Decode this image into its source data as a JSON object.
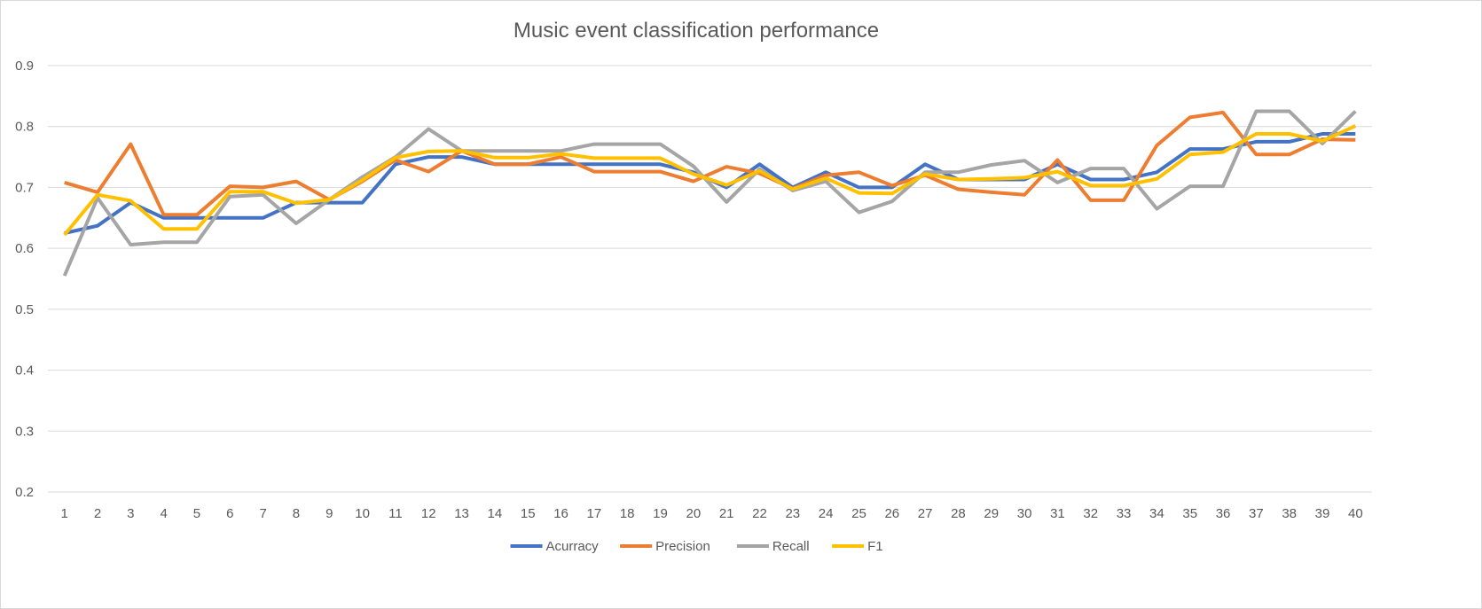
{
  "chart_data": {
    "type": "line",
    "title": "Music event classification performance",
    "xlabel": "",
    "ylabel": "",
    "x": [
      1,
      2,
      3,
      4,
      5,
      6,
      7,
      8,
      9,
      10,
      11,
      12,
      13,
      14,
      15,
      16,
      17,
      18,
      19,
      20,
      21,
      22,
      23,
      24,
      25,
      26,
      27,
      28,
      29,
      30,
      31,
      32,
      33,
      34,
      35,
      36,
      37,
      38,
      39,
      40
    ],
    "ylim": [
      0.2,
      0.9
    ],
    "yticks": [
      "0.2",
      "0.3",
      "0.4",
      "0.5",
      "0.6",
      "0.7",
      "0.8",
      "0.9"
    ],
    "grid": true,
    "legend_position": "bottom",
    "series": [
      {
        "name": "Acurracy",
        "color": "#4472C4",
        "values": [
          0.625,
          0.637,
          0.675,
          0.65,
          0.65,
          0.65,
          0.65,
          0.675,
          0.675,
          0.675,
          0.738,
          0.75,
          0.75,
          0.738,
          0.738,
          0.738,
          0.738,
          0.738,
          0.738,
          0.725,
          0.7,
          0.738,
          0.7,
          0.725,
          0.7,
          0.7,
          0.738,
          0.713,
          0.713,
          0.713,
          0.738,
          0.713,
          0.713,
          0.725,
          0.763,
          0.763,
          0.775,
          0.775,
          0.788,
          0.788
        ]
      },
      {
        "name": "Precision",
        "color": "#ED7D31",
        "values": [
          0.708,
          0.692,
          0.771,
          0.655,
          0.655,
          0.702,
          0.7,
          0.71,
          0.68,
          0.71,
          0.745,
          0.726,
          0.76,
          0.738,
          0.738,
          0.75,
          0.726,
          0.726,
          0.726,
          0.71,
          0.734,
          0.723,
          0.698,
          0.72,
          0.725,
          0.703,
          0.72,
          0.697,
          0.692,
          0.688,
          0.745,
          0.679,
          0.679,
          0.769,
          0.815,
          0.823,
          0.754,
          0.754,
          0.779,
          0.778
        ]
      },
      {
        "name": "Recall",
        "color": "#A5A5A5",
        "values": [
          0.555,
          0.683,
          0.606,
          0.61,
          0.61,
          0.685,
          0.688,
          0.641,
          0.68,
          0.717,
          0.75,
          0.796,
          0.76,
          0.76,
          0.76,
          0.76,
          0.771,
          0.771,
          0.771,
          0.735,
          0.676,
          0.73,
          0.695,
          0.71,
          0.659,
          0.677,
          0.725,
          0.725,
          0.737,
          0.744,
          0.708,
          0.731,
          0.731,
          0.665,
          0.702,
          0.702,
          0.825,
          0.825,
          0.772,
          0.825
        ]
      },
      {
        "name": "F1",
        "color": "#FFC000",
        "values": [
          0.622,
          0.688,
          0.678,
          0.632,
          0.632,
          0.693,
          0.693,
          0.674,
          0.68,
          0.712,
          0.749,
          0.759,
          0.76,
          0.749,
          0.749,
          0.755,
          0.748,
          0.748,
          0.748,
          0.722,
          0.704,
          0.727,
          0.697,
          0.715,
          0.691,
          0.69,
          0.722,
          0.713,
          0.714,
          0.716,
          0.726,
          0.703,
          0.703,
          0.714,
          0.754,
          0.758,
          0.788,
          0.788,
          0.776,
          0.801
        ]
      }
    ]
  }
}
